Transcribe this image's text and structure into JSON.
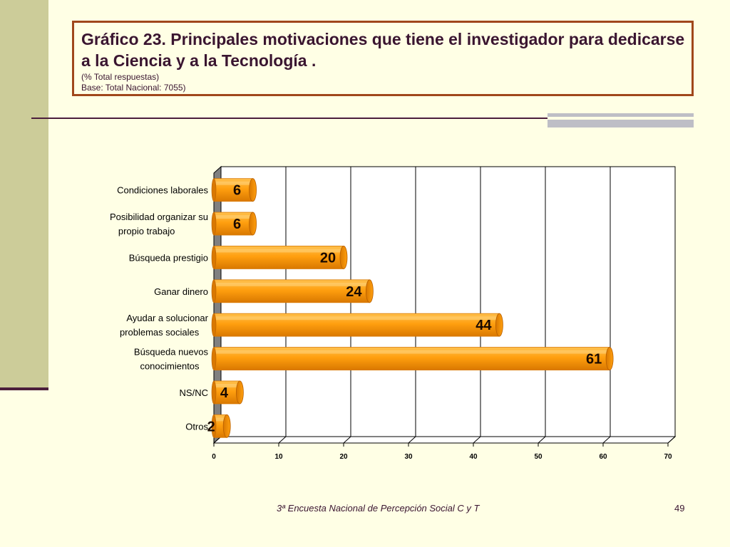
{
  "slide": {
    "title": "Gráfico 23. Principales motivaciones que tiene el investigador para dedicarse a la Ciencia y a la Tecnología .",
    "subtitle_line1": "(% Total respuestas)",
    "subtitle_line2": "Base: Total Nacional: 7055)",
    "footer": "3ª Encuesta Nacional de Percepción Social C y T",
    "page_number": "49"
  },
  "colors": {
    "bar": "#FF9F0F",
    "bar_dark": "#D97800",
    "bar_light": "#FFC04D",
    "title_border": "#A0471B",
    "text": "#3A1530"
  },
  "chart_data": {
    "type": "bar",
    "orientation": "horizontal",
    "categories": [
      [
        "Condiciones laborales"
      ],
      [
        "Posibilidad organizar su",
        "propio trabajo"
      ],
      [
        "Búsqueda prestigio"
      ],
      [
        "Ganar dinero"
      ],
      [
        "Ayudar a solucionar",
        "problemas sociales"
      ],
      [
        "Búsqueda nuevos",
        "conocimientos"
      ],
      [
        "NS/NC"
      ],
      [
        "Otros"
      ]
    ],
    "values": [
      6,
      6,
      20,
      24,
      44,
      61,
      4,
      2
    ],
    "data_labels": [
      "6",
      "6",
      "20",
      "24",
      "44",
      "61",
      "4",
      "2"
    ],
    "xlim": [
      0,
      70
    ],
    "x_ticks": [
      0,
      10,
      20,
      30,
      40,
      50,
      60,
      70
    ],
    "grid": true,
    "legend": "none"
  }
}
